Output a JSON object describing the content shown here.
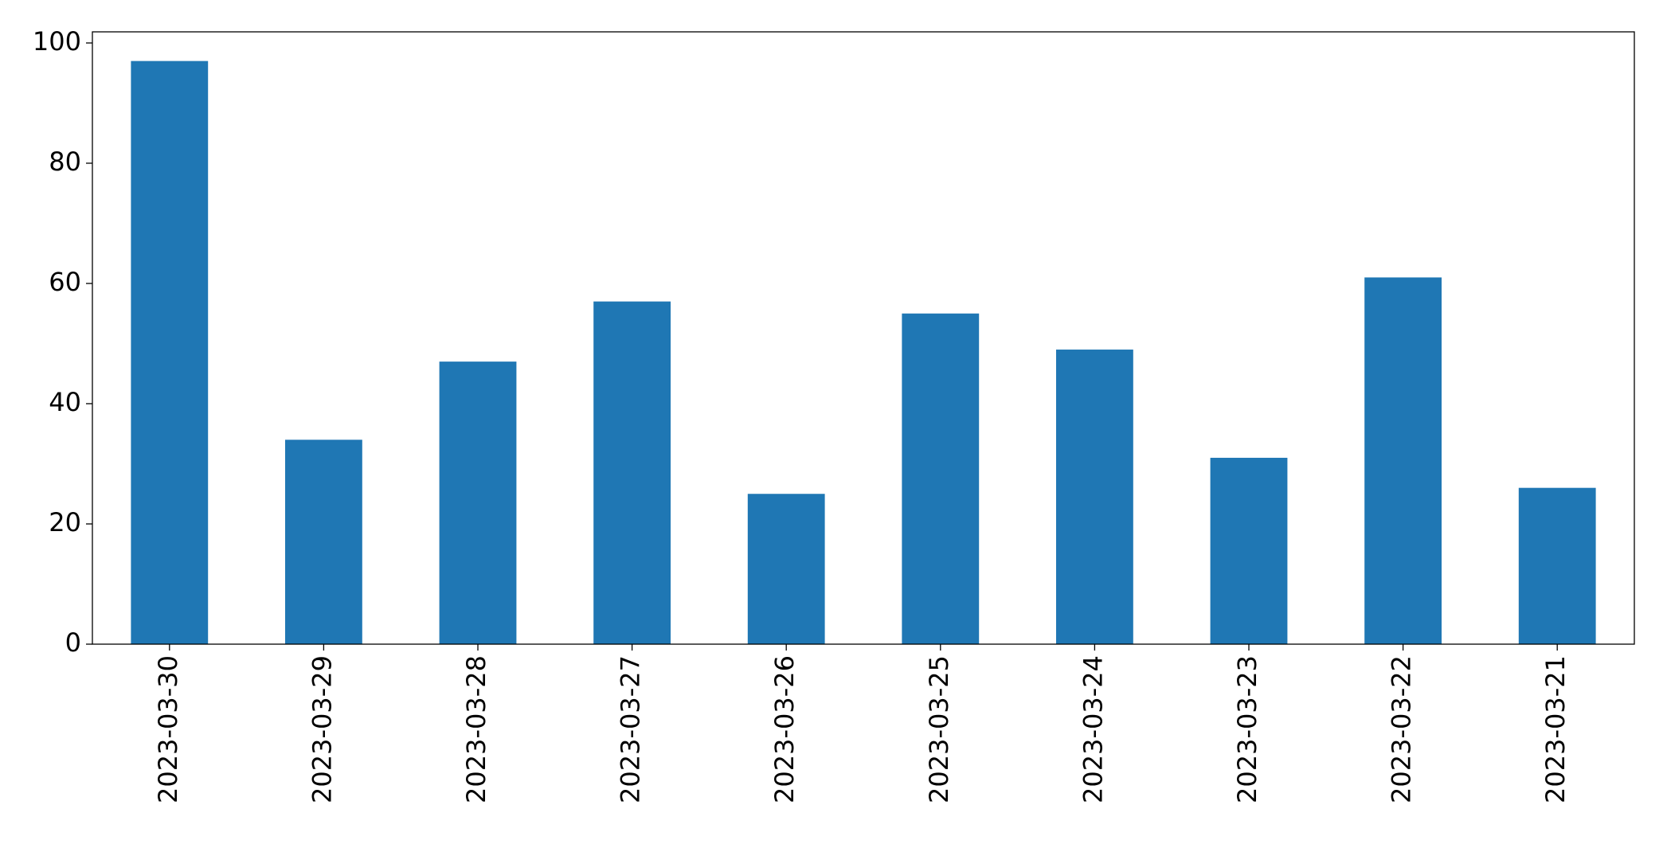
{
  "chart_data": {
    "type": "bar",
    "categories": [
      "2023-03-30",
      "2023-03-29",
      "2023-03-28",
      "2023-03-27",
      "2023-03-26",
      "2023-03-25",
      "2023-03-24",
      "2023-03-23",
      "2023-03-22",
      "2023-03-21"
    ],
    "values": [
      97,
      34,
      47,
      57,
      25,
      55,
      49,
      31,
      61,
      26
    ],
    "color": "#1f77b4",
    "ylim": [
      0,
      101.85
    ],
    "yticks": [
      0,
      20,
      40,
      60,
      80,
      100
    ],
    "grid": false
  }
}
